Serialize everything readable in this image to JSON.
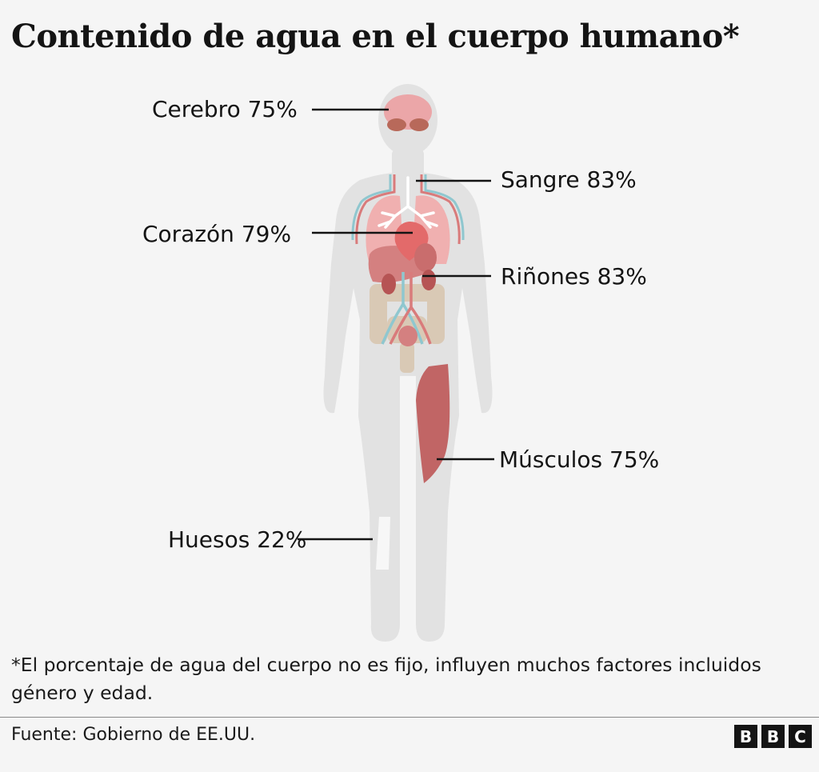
{
  "title": "Contenido de agua en el cuerpo humano*",
  "labels": {
    "brain": "Cerebro 75%",
    "blood": "Sangre 83%",
    "heart": "Corazón 79%",
    "kidneys": "Riñones 83%",
    "muscles": "Músculos 75%",
    "bones": "Huesos 22%"
  },
  "footnote": "*El porcentaje de agua del cuerpo no es fijo, influyen muchos factores incluidos género y edad.",
  "source": "Fuente: Gobierno de EE.UU.",
  "logo": [
    "B",
    "B",
    "C"
  ],
  "colors": {
    "background": "#f5f5f5",
    "body_silhouette": "#e2e2e2",
    "organ_red": "#d48080",
    "muscle": "#c16565",
    "vessel_blue": "#8fc7cf",
    "intestine": "#d9c9b5",
    "bone": "#f7f7f7"
  }
}
